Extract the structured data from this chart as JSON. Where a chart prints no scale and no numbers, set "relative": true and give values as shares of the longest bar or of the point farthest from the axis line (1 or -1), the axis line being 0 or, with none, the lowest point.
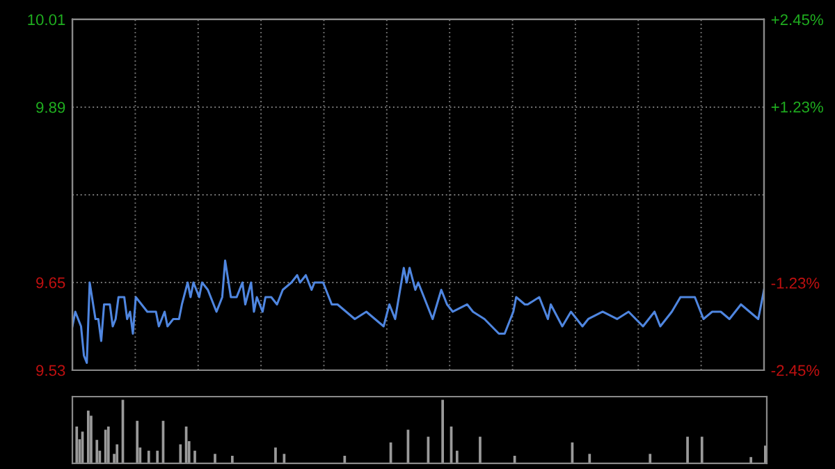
{
  "chart_data": [
    {
      "type": "line",
      "color": "#4f86e0",
      "grid": true,
      "tick_labels": "y",
      "categories": [
        null,
        null,
        null,
        null,
        null,
        null,
        null,
        null,
        null,
        null,
        null,
        null,
        null,
        null,
        null,
        null,
        null,
        null,
        null,
        null,
        null,
        null,
        null,
        null,
        null,
        null,
        null,
        null,
        null,
        null,
        null,
        null,
        null,
        null,
        null,
        null,
        null,
        null,
        null,
        null,
        null,
        null,
        null,
        null,
        null,
        null,
        null,
        null,
        null,
        null,
        null,
        null,
        null,
        null,
        null,
        null,
        null,
        null,
        null,
        null,
        null,
        null,
        null,
        null,
        null,
        null,
        null,
        null,
        null,
        null,
        null,
        null,
        null,
        null,
        null,
        null,
        null,
        null,
        null,
        null,
        null,
        null,
        null,
        null,
        null,
        null,
        null,
        null,
        null,
        null,
        null,
        null,
        null,
        null,
        null,
        null,
        null,
        null,
        null,
        null,
        null,
        null,
        null,
        null,
        null,
        null,
        null,
        null,
        null,
        null,
        null,
        null,
        null,
        null,
        null,
        null,
        null,
        null,
        null,
        null,
        null,
        null,
        null,
        null,
        null,
        null,
        null,
        null,
        null,
        null,
        null,
        null,
        null,
        null,
        null,
        null,
        null,
        null,
        null,
        null,
        null,
        null,
        null,
        null,
        null,
        null,
        null,
        null,
        null,
        null,
        null,
        null,
        null,
        null,
        null,
        null,
        null,
        null,
        null,
        null,
        null,
        null,
        null,
        null,
        null,
        null,
        null,
        null,
        null,
        null,
        null,
        null,
        null,
        null,
        null,
        null,
        null,
        null,
        null,
        null,
        null,
        null,
        null,
        null,
        null,
        null,
        null,
        null,
        null,
        null,
        null,
        null,
        null,
        null,
        null,
        null,
        null,
        null,
        null,
        null,
        null,
        null,
        null,
        null,
        null,
        null,
        null,
        null,
        null,
        null,
        null,
        null,
        null,
        null,
        null,
        null,
        null,
        null,
        null,
        null,
        null,
        null,
        null,
        null,
        null,
        null,
        null,
        null,
        null,
        null,
        null,
        null,
        null,
        null,
        null,
        null,
        null,
        null,
        null,
        null,
        null
      ],
      "values": [
        9.59,
        9.61,
        null,
        9.59,
        9.55,
        9.54,
        9.65,
        null,
        9.6,
        9.6,
        9.57,
        9.62,
        null,
        9.62,
        9.59,
        9.6,
        9.63,
        null,
        9.63,
        9.6,
        9.61,
        9.58,
        9.63,
        null,
        9.62,
        null,
        9.61,
        null,
        null,
        9.61,
        9.59,
        null,
        9.61,
        9.59,
        null,
        9.6,
        null,
        9.6,
        9.62,
        null,
        9.65,
        9.63,
        9.65,
        null,
        9.63,
        9.65,
        null,
        9.64,
        null,
        null,
        9.61,
        null,
        9.63,
        9.68,
        null,
        9.63,
        null,
        9.63,
        null,
        9.65,
        9.62,
        null,
        9.65,
        9.61,
        9.63,
        null,
        9.61,
        9.63,
        null,
        9.63,
        null,
        9.62,
        null,
        9.64,
        null,
        null,
        9.65,
        null,
        9.66,
        9.65,
        null,
        9.66,
        null,
        9.64,
        9.65,
        null,
        null,
        9.65,
        null,
        null,
        9.62,
        null,
        9.62,
        null,
        null,
        9.61,
        null,
        null,
        9.6,
        null,
        null,
        null,
        9.61,
        null,
        null,
        null,
        null,
        null,
        9.59,
        null,
        9.62,
        null,
        9.6,
        null,
        null,
        9.67,
        9.65,
        9.67,
        null,
        9.64,
        9.65,
        null,
        9.63,
        null,
        null,
        9.6,
        null,
        null,
        9.64,
        null,
        9.62,
        null,
        9.61,
        null,
        null,
        null,
        null,
        9.62,
        null,
        9.61,
        null,
        null,
        null,
        9.6,
        null,
        null,
        null,
        null,
        9.58,
        null,
        9.58,
        null,
        null,
        9.61,
        9.63,
        null,
        null,
        9.62,
        9.62,
        null,
        null,
        null,
        9.63,
        null,
        null,
        9.6,
        9.62,
        null,
        null,
        null,
        9.59,
        null,
        null,
        9.61,
        null,
        null,
        null,
        9.59,
        null,
        9.6,
        null,
        null,
        null,
        null,
        9.61,
        null,
        null,
        null,
        null,
        9.6,
        null,
        null,
        null,
        9.61,
        null,
        null,
        null,
        null,
        9.59,
        null,
        null,
        null,
        9.61,
        null,
        9.59,
        null,
        null,
        null,
        9.61,
        null,
        null,
        9.63,
        null,
        null,
        null,
        null,
        9.63,
        null,
        null,
        9.6,
        null,
        null,
        9.61,
        null,
        null,
        9.61,
        null,
        null,
        9.6,
        null,
        null,
        null,
        9.62,
        null,
        null,
        9.61,
        null,
        null,
        9.6,
        null,
        9.64
      ],
      "ylim": [
        9.53,
        10.01
      ],
      "yticks": [
        9.53,
        9.65,
        {
          "value": 9.77,
          "label": null
        },
        9.89,
        10.01
      ],
      "y2lim": [
        -2.45,
        2.45
      ],
      "y2ticks": [
        {
          "value": -2.45,
          "label": "-2.45%"
        },
        {
          "value": -1.23,
          "label": "-1.23%"
        },
        {
          "value": 0,
          "label": null
        },
        {
          "value": 1.23,
          "label": "+1.23%"
        },
        {
          "value": 2.45,
          "label": "+2.45%"
        }
      ]
    },
    {
      "type": "bar",
      "relative": true,
      "color": "#9a9a9a",
      "tick_labels": false,
      "categories": [
        null,
        null,
        null,
        null,
        null,
        null,
        null,
        null,
        null,
        null,
        null,
        null,
        null,
        null,
        null,
        null,
        null,
        null,
        null,
        null,
        null,
        null,
        null,
        null,
        null,
        null,
        null,
        null,
        null,
        null,
        null,
        null,
        null,
        null,
        null,
        null,
        null,
        null,
        null,
        null,
        null,
        null,
        null,
        null,
        null,
        null,
        null,
        null,
        null,
        null,
        null,
        null,
        null,
        null,
        null,
        null,
        null,
        null,
        null,
        null,
        null,
        null,
        null,
        null,
        null,
        null,
        null,
        null,
        null,
        null,
        null,
        null,
        null,
        null,
        null,
        null,
        null,
        null,
        null,
        null,
        null,
        null,
        null,
        null,
        null,
        null,
        null,
        null,
        null,
        null,
        null,
        null,
        null,
        null,
        null,
        null,
        null,
        null,
        null,
        null,
        null,
        null,
        null,
        null,
        null,
        null,
        null,
        null,
        null,
        null,
        null,
        null,
        null,
        null,
        null,
        null,
        null,
        null,
        null,
        null,
        null,
        null,
        null,
        null,
        null,
        null,
        null,
        null,
        null,
        null,
        null,
        null,
        null,
        null,
        null,
        null,
        null,
        null,
        null,
        null,
        null,
        null,
        null,
        null,
        null,
        null,
        null,
        null,
        null,
        null,
        null,
        null,
        null,
        null,
        null,
        null,
        null,
        null,
        null,
        null,
        null,
        null,
        null,
        null,
        null,
        null,
        null,
        null,
        null,
        null,
        null,
        null,
        null,
        null,
        null,
        null,
        null,
        null,
        null,
        null,
        null,
        null,
        null,
        null,
        null,
        null,
        null,
        null,
        null,
        null,
        null,
        null,
        null,
        null,
        null,
        null,
        null,
        null,
        null,
        null,
        null,
        null,
        null,
        null,
        null,
        null,
        null,
        null,
        null,
        null,
        null,
        null,
        null,
        null,
        null,
        null,
        null,
        null,
        null,
        null,
        null,
        null,
        null,
        null,
        null,
        null,
        null,
        null,
        null,
        null,
        null,
        null,
        null,
        null,
        null,
        null,
        null,
        null,
        null,
        null,
        null
      ],
      "values": [
        null,
        0.58,
        0.38,
        0.5,
        null,
        0.83,
        0.75,
        null,
        0.37,
        0.2,
        null,
        0.53,
        0.58,
        null,
        0.15,
        0.3,
        null,
        1.0,
        null,
        null,
        null,
        null,
        0.67,
        0.25,
        null,
        null,
        0.2,
        null,
        null,
        0.2,
        null,
        0.67,
        null,
        null,
        null,
        null,
        null,
        0.3,
        null,
        0.58,
        0.35,
        null,
        0.2,
        null,
        null,
        null,
        null,
        null,
        null,
        0.15,
        null,
        null,
        null,
        null,
        null,
        0.12,
        null,
        null,
        null,
        null,
        null,
        null,
        null,
        null,
        null,
        null,
        null,
        null,
        null,
        null,
        0.25,
        null,
        null,
        0.15,
        null,
        null,
        null,
        null,
        null,
        null,
        null,
        null,
        null,
        null,
        null,
        null,
        null,
        null,
        null,
        null,
        null,
        null,
        null,
        null,
        0.12,
        null,
        null,
        null,
        null,
        null,
        null,
        null,
        null,
        null,
        null,
        null,
        null,
        null,
        null,
        null,
        0.33,
        null,
        null,
        null,
        null,
        null,
        0.53,
        null,
        null,
        null,
        null,
        null,
        null,
        0.42,
        null,
        null,
        null,
        null,
        1.0,
        null,
        null,
        0.58,
        null,
        0.2,
        null,
        null,
        null,
        null,
        null,
        null,
        null,
        0.42,
        null,
        null,
        null,
        null,
        null,
        null,
        null,
        null,
        null,
        null,
        null,
        0.12,
        null,
        null,
        null,
        null,
        null,
        null,
        null,
        null,
        null,
        null,
        null,
        null,
        null,
        null,
        null,
        null,
        null,
        null,
        null,
        0.33,
        null,
        null,
        null,
        null,
        null,
        0.15,
        null,
        null,
        null,
        null,
        null,
        null,
        null,
        null,
        null,
        null,
        null,
        null,
        null,
        null,
        null,
        null,
        null,
        null,
        null,
        null,
        0.15,
        null,
        null,
        null,
        null,
        null,
        null,
        null,
        null,
        null,
        null,
        null,
        null,
        0.42,
        null,
        null,
        null,
        null,
        0.42,
        null,
        null,
        null,
        null,
        null,
        null,
        null,
        null,
        null,
        null,
        null,
        null,
        null,
        null,
        null,
        null,
        0.1,
        null,
        null,
        null,
        null,
        0.28
      ]
    }
  ]
}
